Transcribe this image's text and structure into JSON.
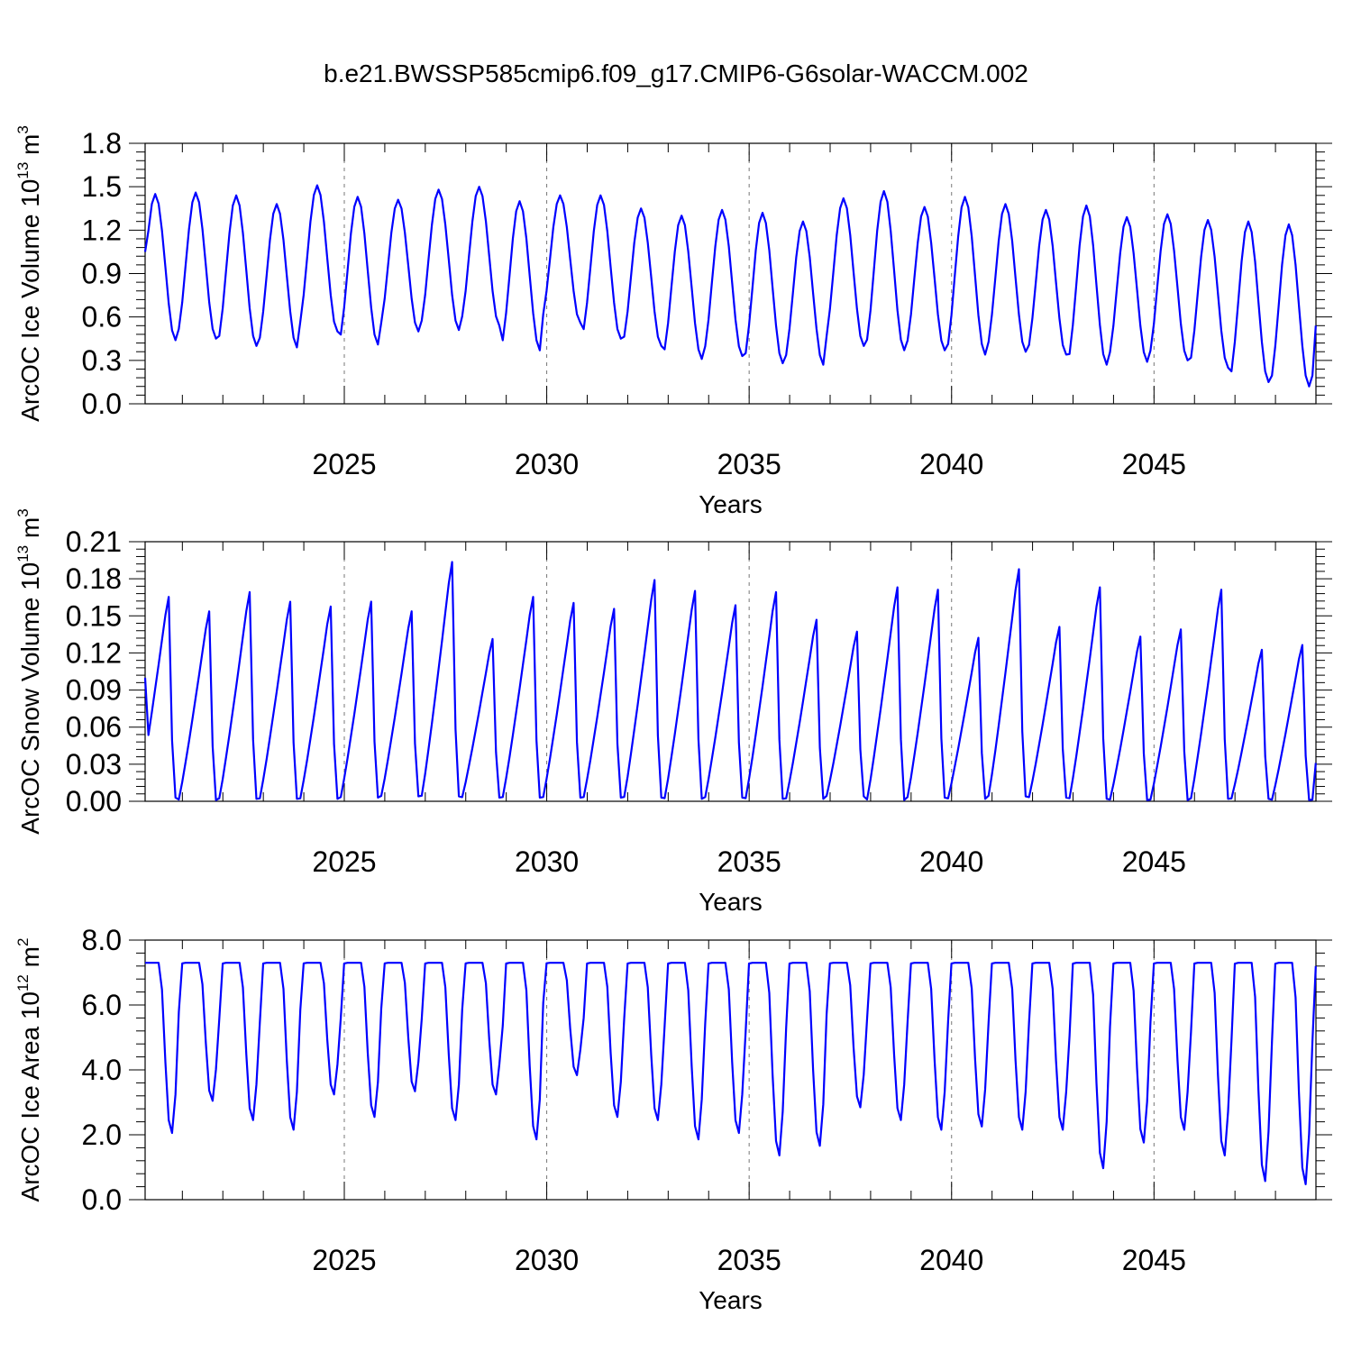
{
  "title": "b.e21.BWSSP585cmip6.f09_g17.CMIP6-G6solar-WACCM.002",
  "line_color": "#0000ff",
  "chart_data": [
    {
      "type": "line",
      "ylabel": "ArcOC Ice Volume 10^13 m^3",
      "ylabel_parts": {
        "main": "ArcOC Ice Volume 10",
        "exp": "13",
        "unit": " m",
        "unit_exp": "3"
      },
      "xlabel": "Years",
      "xlim": [
        2020.08,
        2049.0
      ],
      "ylim": [
        0.0,
        1.8
      ],
      "yticks": [
        0.0,
        0.3,
        0.6,
        0.9,
        1.2,
        1.5,
        1.8
      ],
      "ytick_labels": [
        "0.0",
        "0.3",
        "0.6",
        "0.9",
        "1.2",
        "1.5",
        "1.8"
      ],
      "xticks": [
        2025,
        2030,
        2035,
        2040,
        2045
      ],
      "xtick_labels": [
        "2025",
        "2030",
        "2035",
        "2040",
        "2045"
      ],
      "grid": "vertical dashed at major x ticks",
      "start": 2020.08,
      "step": 0.0833333,
      "ymin": [
        0.44,
        0.45,
        0.4,
        0.39,
        0.5,
        0.41,
        0.5,
        0.51,
        0.54,
        0.37,
        0.56,
        0.45,
        0.4,
        0.31,
        0.33,
        0.28,
        0.27,
        0.4,
        0.37,
        0.37,
        0.34,
        0.36,
        0.34,
        0.27,
        0.29,
        0.3,
        0.25,
        0.15,
        0.12
      ],
      "ymax": [
        1.45,
        1.46,
        1.44,
        1.38,
        1.51,
        1.43,
        1.41,
        1.48,
        1.5,
        1.4,
        1.44,
        1.44,
        1.35,
        1.3,
        1.34,
        1.32,
        1.26,
        1.42,
        1.47,
        1.36,
        1.43,
        1.38,
        1.34,
        1.37,
        1.29,
        1.31,
        1.27,
        1.26,
        1.24
      ],
      "y_start": 1.05,
      "y_end": 0.54,
      "values": []
    },
    {
      "type": "line",
      "ylabel": "ArcOC Snow Volume 10^13 m^3",
      "ylabel_parts": {
        "main": "ArcOC Snow Volume 10",
        "exp": "13",
        "unit": " m",
        "unit_exp": "3"
      },
      "xlabel": "Years",
      "xlim": [
        2020.08,
        2049.0
      ],
      "ylim": [
        0.0,
        0.21
      ],
      "yticks": [
        0.0,
        0.03,
        0.06,
        0.09,
        0.12,
        0.15,
        0.18,
        0.21
      ],
      "ytick_labels": [
        "0.00",
        "0.03",
        "0.06",
        "0.09",
        "0.12",
        "0.15",
        "0.18",
        "0.21"
      ],
      "xticks": [
        2025,
        2030,
        2035,
        2040,
        2045
      ],
      "xtick_labels": [
        "2025",
        "2030",
        "2035",
        "2040",
        "2045"
      ],
      "grid": "vertical dashed at major x ticks",
      "start": 2020.08,
      "step": 0.0833333,
      "ymax": [
        0.17,
        0.158,
        0.174,
        0.166,
        0.162,
        0.166,
        0.158,
        0.199,
        0.135,
        0.17,
        0.165,
        0.16,
        0.184,
        0.175,
        0.163,
        0.174,
        0.151,
        0.141,
        0.178,
        0.176,
        0.136,
        0.193,
        0.145,
        0.178,
        0.137,
        0.143,
        0.176,
        0.126,
        0.13
      ],
      "ymin": [
        0.003,
        0.001,
        0.002,
        0.002,
        0.002,
        0.003,
        0.004,
        0.004,
        0.003,
        0.003,
        0.003,
        0.003,
        0.003,
        0.002,
        0.003,
        0.002,
        0.002,
        0.004,
        0.001,
        0.003,
        0.002,
        0.004,
        0.003,
        0.002,
        0.001,
        0.001,
        0.002,
        0.002,
        0.001
      ],
      "y_start": 0.1,
      "y_end": 0.031,
      "values": []
    },
    {
      "type": "line",
      "ylabel": "ArcOC Ice Area 10^12 m^2",
      "ylabel_parts": {
        "main": "ArcOC Ice Area 10",
        "exp": "12",
        "unit": " m",
        "unit_exp": "2"
      },
      "xlabel": "Years",
      "xlim": [
        2020.08,
        2049.0
      ],
      "ylim": [
        0.0,
        8.0
      ],
      "yticks": [
        0.0,
        2.0,
        4.0,
        6.0,
        8.0
      ],
      "ytick_labels": [
        "0.0",
        "2.0",
        "4.0",
        "6.0",
        "8.0"
      ],
      "xticks": [
        2025,
        2030,
        2035,
        2040,
        2045
      ],
      "xtick_labels": [
        "2025",
        "2030",
        "2035",
        "2040",
        "2045"
      ],
      "grid": "vertical dashed at major x ticks",
      "start": 2020.08,
      "step": 0.0833333,
      "ymax": [
        7.3,
        7.3,
        7.3,
        7.3,
        7.3,
        7.3,
        7.3,
        7.3,
        7.3,
        7.3,
        7.3,
        7.3,
        7.3,
        7.3,
        7.3,
        7.3,
        7.3,
        7.3,
        7.3,
        7.3,
        7.3,
        7.3,
        7.3,
        7.3,
        7.3,
        7.3,
        7.3,
        7.3,
        7.3
      ],
      "ymin": [
        2.0,
        3.0,
        2.4,
        2.1,
        3.2,
        2.5,
        3.3,
        2.4,
        3.2,
        1.8,
        3.8,
        2.5,
        2.4,
        1.8,
        2.0,
        1.3,
        1.6,
        2.8,
        2.4,
        2.1,
        2.2,
        2.1,
        2.1,
        0.9,
        1.7,
        2.1,
        1.3,
        0.5,
        0.4
      ],
      "y_start": 7.3,
      "y_end": 7.2,
      "values": []
    }
  ]
}
